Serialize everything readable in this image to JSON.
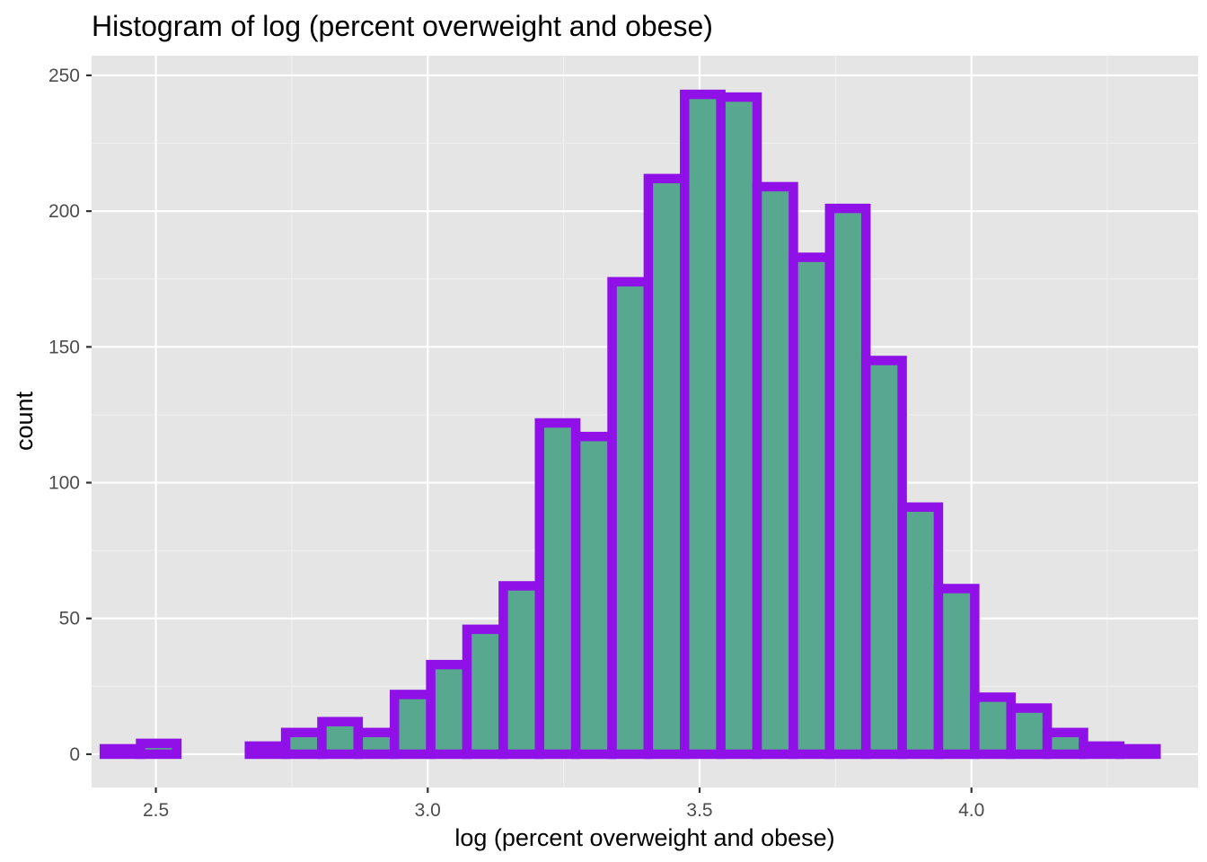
{
  "chart_data": {
    "type": "bar",
    "title": "Histogram of log (percent overweight and obese)",
    "xlabel": "log (percent overweight and obese)",
    "ylabel": "count",
    "xlim": [
      2.3818,
      4.4167
    ],
    "ylim": [
      -12.25,
      257.25
    ],
    "x_ticks": [
      2.5,
      3.0,
      3.5,
      4.0
    ],
    "x_tick_labels": [
      "2.5",
      "3.0",
      "3.5",
      "4.0"
    ],
    "y_ticks": [
      0,
      50,
      100,
      150,
      200,
      250
    ],
    "y_tick_labels": [
      "0",
      "50",
      "100",
      "150",
      "200",
      "250"
    ],
    "bin_width": 0.0667,
    "bin_starts": [
      2.4052,
      2.4719,
      2.5386,
      2.6053,
      2.672,
      2.7387,
      2.8054,
      2.8721,
      2.9388,
      3.0055,
      3.0722,
      3.1389,
      3.2056,
      3.2723,
      3.339,
      3.4057,
      3.4724,
      3.5391,
      3.6058,
      3.6725,
      3.7392,
      3.8059,
      3.8726,
      3.9393,
      4.006,
      4.0727,
      4.1394,
      4.2061,
      4.2728,
      4.3395
    ],
    "values": [
      2,
      4,
      0,
      0,
      3,
      8,
      12,
      8,
      22,
      33,
      46,
      62,
      122,
      117,
      174,
      212,
      243,
      242,
      209,
      183,
      201,
      145,
      91,
      61,
      21,
      17,
      8,
      3,
      2,
      0
    ],
    "grid": true,
    "colors": {
      "panel_background": "#e5e5e5",
      "grid_major": "#ffffff",
      "grid_minor": "#f0f0f0",
      "bar_fill": "#57a88e",
      "bar_outline": "#9010e8",
      "tick_label": "#4d4d4d",
      "tick_mark": "#333333"
    }
  }
}
